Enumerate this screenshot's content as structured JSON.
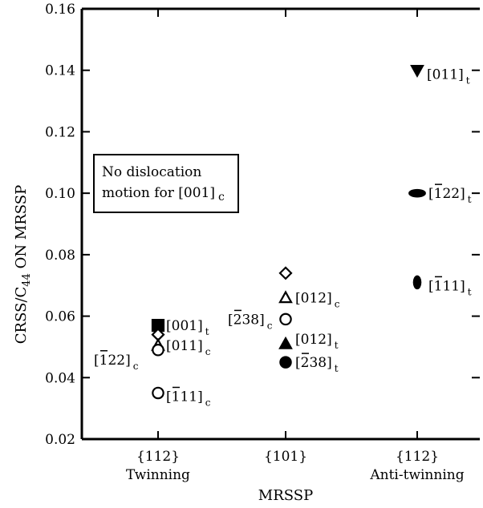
{
  "chart_data": {
    "type": "scatter",
    "xlabel": "MRSSP",
    "ylabel": "CRSS/C44 ON MRSSP",
    "ylim": [
      0.02,
      0.16
    ],
    "yticks": [
      "0.02",
      "0.04",
      "0.06",
      "0.08",
      "0.10",
      "0.12",
      "0.14",
      "0.16"
    ],
    "categories": [
      {
        "line1": "{112}",
        "line2": "Twinning"
      },
      {
        "line1": "{101}",
        "line2": ""
      },
      {
        "line1": "{112}",
        "line2": "Anti-twinning"
      }
    ],
    "annotation": {
      "line1": "No dislocation",
      "line2": "motion for [001]",
      "line2_sub": "c"
    },
    "points": [
      {
        "x": 0,
        "y": 0.057,
        "marker": "square",
        "filled": true,
        "label_main": "[001]",
        "label_sub": "t"
      },
      {
        "x": 0,
        "y": 0.054,
        "marker": "diamond",
        "filled": false,
        "label_main": "",
        "label_sub": ""
      },
      {
        "x": 0,
        "y": 0.0505,
        "marker": "triangle",
        "filled": false,
        "label_main": "[011]",
        "label_sub": "c"
      },
      {
        "x": 0,
        "y": 0.049,
        "marker": "circle",
        "filled": false,
        "label_main": "[122]",
        "label_sub": "c",
        "label_bar": "1"
      },
      {
        "x": 0,
        "y": 0.035,
        "marker": "circle",
        "filled": false,
        "label_main": "[111]",
        "label_sub": "c",
        "label_bar": "1"
      },
      {
        "x": 1,
        "y": 0.074,
        "marker": "diamond",
        "filled": false,
        "label_main": "",
        "label_sub": ""
      },
      {
        "x": 1,
        "y": 0.066,
        "marker": "triangle",
        "filled": false,
        "label_main": "[012]",
        "label_sub": "c"
      },
      {
        "x": 1,
        "y": 0.059,
        "marker": "circle",
        "filled": false,
        "label_main": "[238]",
        "label_sub": "c",
        "label_bar": "2"
      },
      {
        "x": 1,
        "y": 0.051,
        "marker": "triangle",
        "filled": true,
        "label_main": "[012]",
        "label_sub": "t"
      },
      {
        "x": 1,
        "y": 0.045,
        "marker": "circle",
        "filled": true,
        "label_main": "[238]",
        "label_sub": "t",
        "label_bar": "2"
      },
      {
        "x": 2,
        "y": 0.14,
        "marker": "triangle-down",
        "filled": true,
        "label_main": "[011]",
        "label_sub": "t"
      },
      {
        "x": 2,
        "y": 0.1,
        "marker": "ellipse",
        "filled": true,
        "label_main": "[122]",
        "label_sub": "t",
        "label_bar": "1"
      },
      {
        "x": 2,
        "y": 0.071,
        "marker": "ellipse-v",
        "filled": true,
        "label_main": "[111]",
        "label_sub": "t",
        "label_bar": "1"
      }
    ]
  }
}
